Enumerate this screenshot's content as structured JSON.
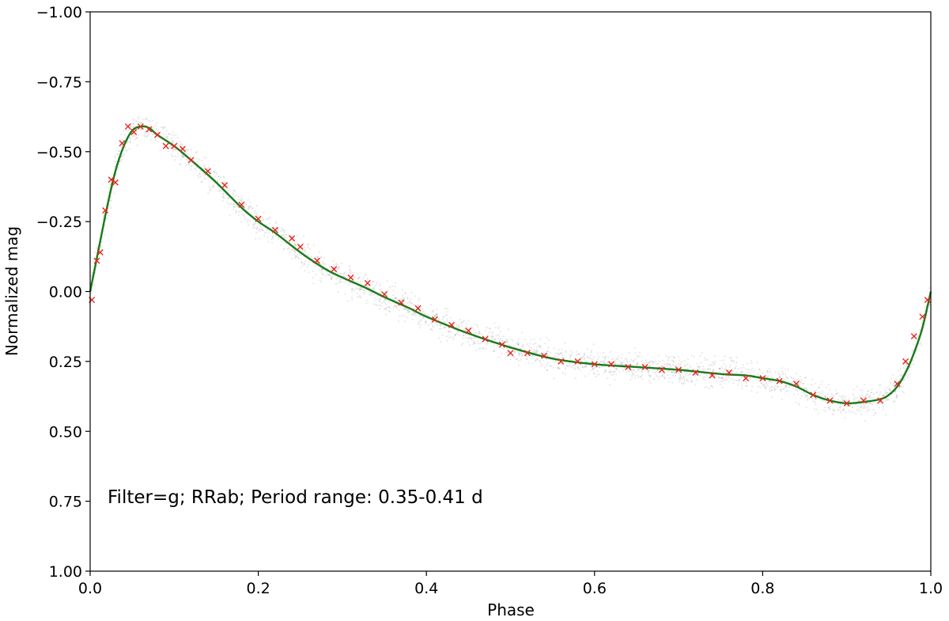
{
  "chart_data": {
    "type": "scatter",
    "title": "",
    "xlabel": "Phase",
    "ylabel": "Normalized mag",
    "xlim": [
      0.0,
      1.0
    ],
    "ylim": [
      1.0,
      -1.0
    ],
    "y_inverted": true,
    "grid": false,
    "x_ticks": [
      {
        "value": 0.0,
        "label": "0.0"
      },
      {
        "value": 0.2,
        "label": "0.2"
      },
      {
        "value": 0.4,
        "label": "0.4"
      },
      {
        "value": 0.6,
        "label": "0.6"
      },
      {
        "value": 0.8,
        "label": "0.8"
      },
      {
        "value": 1.0,
        "label": "1.0"
      }
    ],
    "y_ticks": [
      {
        "value": -1.0,
        "label": "−1.00"
      },
      {
        "value": -0.75,
        "label": "−0.75"
      },
      {
        "value": -0.5,
        "label": "−0.50"
      },
      {
        "value": -0.25,
        "label": "−0.25"
      },
      {
        "value": 0.0,
        "label": "0.00"
      },
      {
        "value": 0.25,
        "label": "0.25"
      },
      {
        "value": 0.5,
        "label": "0.50"
      },
      {
        "value": 0.75,
        "label": "0.75"
      },
      {
        "value": 1.0,
        "label": "1.00"
      }
    ],
    "annotation": "Filter=g; RRab; Period range: 0.35-0.41 d",
    "colors": {
      "curve": "#1a7a1a",
      "markers": "#e8261c",
      "cloud": "#000000"
    },
    "series": [
      {
        "kind": "line",
        "color": "#1a7a1a",
        "x": [
          0.0,
          0.01,
          0.02,
          0.03,
          0.04,
          0.05,
          0.06,
          0.07,
          0.08,
          0.1,
          0.12,
          0.15,
          0.18,
          0.2,
          0.22,
          0.25,
          0.28,
          0.3,
          0.33,
          0.35,
          0.38,
          0.4,
          0.45,
          0.5,
          0.55,
          0.6,
          0.65,
          0.7,
          0.75,
          0.78,
          0.8,
          0.82,
          0.84,
          0.86,
          0.88,
          0.9,
          0.92,
          0.94,
          0.95,
          0.96,
          0.97,
          0.98,
          0.99,
          1.0
        ],
        "y": [
          0.0,
          -0.15,
          -0.3,
          -0.43,
          -0.52,
          -0.575,
          -0.59,
          -0.585,
          -0.56,
          -0.52,
          -0.47,
          -0.39,
          -0.3,
          -0.25,
          -0.21,
          -0.14,
          -0.08,
          -0.05,
          -0.01,
          0.02,
          0.06,
          0.09,
          0.15,
          0.2,
          0.24,
          0.26,
          0.27,
          0.28,
          0.295,
          0.3,
          0.31,
          0.32,
          0.34,
          0.37,
          0.39,
          0.4,
          0.395,
          0.385,
          0.37,
          0.34,
          0.29,
          0.22,
          0.13,
          0.0
        ]
      },
      {
        "kind": "markers",
        "marker": "x",
        "color": "#e8261c",
        "x": [
          0.002,
          0.008,
          0.012,
          0.018,
          0.025,
          0.03,
          0.038,
          0.045,
          0.052,
          0.06,
          0.07,
          0.08,
          0.09,
          0.1,
          0.11,
          0.12,
          0.14,
          0.16,
          0.18,
          0.2,
          0.22,
          0.24,
          0.25,
          0.27,
          0.29,
          0.31,
          0.33,
          0.35,
          0.37,
          0.39,
          0.41,
          0.43,
          0.45,
          0.47,
          0.49,
          0.5,
          0.52,
          0.54,
          0.56,
          0.58,
          0.6,
          0.62,
          0.64,
          0.66,
          0.68,
          0.7,
          0.72,
          0.74,
          0.76,
          0.78,
          0.8,
          0.82,
          0.84,
          0.86,
          0.88,
          0.9,
          0.92,
          0.94,
          0.96,
          0.97,
          0.98,
          0.99,
          0.996
        ],
        "y": [
          0.03,
          -0.11,
          -0.14,
          -0.29,
          -0.4,
          -0.39,
          -0.53,
          -0.59,
          -0.57,
          -0.59,
          -0.58,
          -0.56,
          -0.52,
          -0.52,
          -0.51,
          -0.47,
          -0.43,
          -0.38,
          -0.31,
          -0.26,
          -0.22,
          -0.19,
          -0.16,
          -0.11,
          -0.08,
          -0.05,
          -0.03,
          0.01,
          0.04,
          0.06,
          0.1,
          0.12,
          0.14,
          0.17,
          0.19,
          0.22,
          0.22,
          0.23,
          0.25,
          0.25,
          0.26,
          0.26,
          0.27,
          0.27,
          0.28,
          0.28,
          0.29,
          0.3,
          0.29,
          0.31,
          0.31,
          0.32,
          0.33,
          0.37,
          0.39,
          0.4,
          0.39,
          0.39,
          0.33,
          0.25,
          0.16,
          0.09,
          0.03
        ]
      }
    ]
  }
}
